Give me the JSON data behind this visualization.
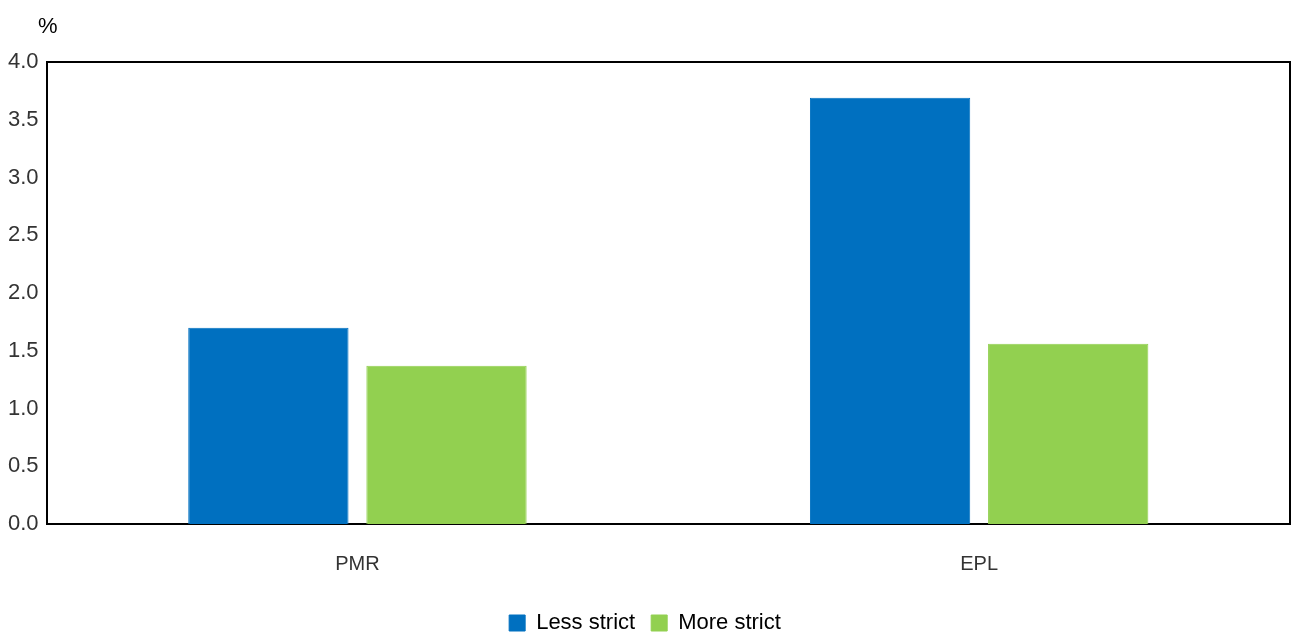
{
  "chart_data": {
    "type": "bar",
    "ylabel": "%",
    "categories": [
      "PMR",
      "EPL"
    ],
    "series": [
      {
        "name": "Less strict",
        "color": "#0070c0",
        "values": [
          1.7,
          3.69
        ]
      },
      {
        "name": "More strict",
        "color": "#92d050",
        "values": [
          1.37,
          1.56
        ]
      }
    ],
    "ylim": [
      0,
      4
    ],
    "yticks": [
      {
        "value": 0,
        "label": "0.0"
      },
      {
        "value": 0.5,
        "label": "0.5"
      },
      {
        "value": 1,
        "label": "1.0"
      },
      {
        "value": 1.5,
        "label": "1.5"
      },
      {
        "value": 2,
        "label": "2.0"
      },
      {
        "value": 2.5,
        "label": "2.5"
      },
      {
        "value": 3,
        "label": "3.0"
      },
      {
        "value": 3.5,
        "label": "3.5"
      },
      {
        "value": 4,
        "label": "4.0"
      }
    ],
    "grid": false,
    "legend": "bottom"
  }
}
